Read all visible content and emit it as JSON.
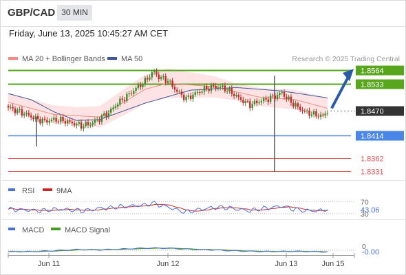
{
  "header": {
    "symbol": "GBP/CAD",
    "timeframe": "30 MIN",
    "datetime": "Friday, June 13, 2025 10:45:27 AM CET"
  },
  "legend": {
    "ma20": {
      "label": "MA 20 + Bollinger Bands",
      "color": "#f28b82"
    },
    "ma50": {
      "label": "MA 50",
      "color": "#3c5a99"
    },
    "research": "Research © 2025 Trading Central"
  },
  "colors": {
    "up": "#3a8a2e",
    "down": "#c62828",
    "support": "#4a86e8",
    "resistance": "#58a61c",
    "target": "#e05555",
    "current": "#333333",
    "arrow": "#2b5ba8",
    "band_fill": "#fde3e3"
  },
  "chart_data": [
    {
      "type": "candlestick",
      "title": "GBP/CAD",
      "timeframe": "30 MIN",
      "x_ticks": [
        "Jun 11",
        "Jun 12",
        "Jun 13",
        "Jun 15"
      ],
      "ylim": [
        1.832,
        1.858
      ],
      "current_price": 1.847,
      "levels": [
        {
          "value": 1.8564,
          "label": "1.8564",
          "kind": "resistance"
        },
        {
          "value": 1.8533,
          "label": "1.8533",
          "kind": "resistance"
        },
        {
          "value": 1.847,
          "label": "1.8470",
          "kind": "current"
        },
        {
          "value": 1.8414,
          "label": "1.8414",
          "kind": "support"
        },
        {
          "value": 1.8362,
          "label": "1.8362",
          "kind": "target"
        },
        {
          "value": 1.8331,
          "label": "1.8331",
          "kind": "target"
        }
      ],
      "close_keyframes": [
        [
          0,
          1.8478
        ],
        [
          4,
          1.847
        ],
        [
          8,
          1.8462
        ],
        [
          12,
          1.8452
        ],
        [
          16,
          1.8446
        ],
        [
          20,
          1.845
        ],
        [
          24,
          1.8448
        ],
        [
          28,
          1.8442
        ],
        [
          32,
          1.8436
        ],
        [
          36,
          1.844
        ],
        [
          40,
          1.8452
        ],
        [
          44,
          1.8466
        ],
        [
          48,
          1.8488
        ],
        [
          52,
          1.8504
        ],
        [
          56,
          1.8522
        ],
        [
          60,
          1.8538
        ],
        [
          62,
          1.8552
        ],
        [
          64,
          1.856
        ],
        [
          66,
          1.8548
        ],
        [
          70,
          1.854
        ],
        [
          74,
          1.8515
        ],
        [
          78,
          1.8498
        ],
        [
          82,
          1.851
        ],
        [
          86,
          1.852
        ],
        [
          90,
          1.8526
        ],
        [
          94,
          1.8524
        ],
        [
          98,
          1.8512
        ],
        [
          102,
          1.8496
        ],
        [
          106,
          1.8484
        ],
        [
          110,
          1.8492
        ],
        [
          114,
          1.8498
        ],
        [
          118,
          1.8506
        ],
        [
          120,
          1.8512
        ],
        [
          122,
          1.85
        ],
        [
          126,
          1.8482
        ],
        [
          130,
          1.8468
        ],
        [
          134,
          1.8462
        ],
        [
          138,
          1.8458
        ],
        [
          140,
          1.847
        ]
      ],
      "ma20_keyframes": [
        [
          0,
          1.849
        ],
        [
          20,
          1.8462
        ],
        [
          40,
          1.8456
        ],
        [
          60,
          1.852
        ],
        [
          70,
          1.8534
        ],
        [
          90,
          1.8526
        ],
        [
          110,
          1.8502
        ],
        [
          126,
          1.8496
        ],
        [
          140,
          1.8476
        ]
      ],
      "ma50_keyframes": [
        [
          0,
          1.851
        ],
        [
          10,
          1.8496
        ],
        [
          20,
          1.8468
        ],
        [
          30,
          1.8448
        ],
        [
          40,
          1.845
        ],
        [
          60,
          1.8488
        ],
        [
          80,
          1.8518
        ],
        [
          100,
          1.8524
        ],
        [
          120,
          1.8516
        ],
        [
          140,
          1.85
        ]
      ],
      "band_width_keyframes": [
        [
          0,
          0.0022
        ],
        [
          30,
          0.002
        ],
        [
          55,
          0.0032
        ],
        [
          70,
          0.0034
        ],
        [
          100,
          0.002
        ],
        [
          140,
          0.0024
        ]
      ]
    },
    {
      "type": "line",
      "title": "RSI",
      "series": [
        {
          "name": "RSI",
          "color": "#4a6fd8"
        },
        {
          "name": "9MA",
          "color": "#c62828"
        }
      ],
      "ylim": [
        25,
        80
      ],
      "levels": [
        {
          "value": 70,
          "label": "70"
        },
        {
          "value": 30,
          "label": "30"
        }
      ],
      "last_value": 43.06,
      "last_label": "43.06"
    },
    {
      "type": "line",
      "title": "MACD",
      "series": [
        {
          "name": "MACD",
          "color": "#4a6fd8"
        },
        {
          "name": "MACD Signal",
          "color": "#4a9a22"
        }
      ],
      "zero_label": "0",
      "last_value": -0.0,
      "last_label": "-0.00"
    }
  ]
}
